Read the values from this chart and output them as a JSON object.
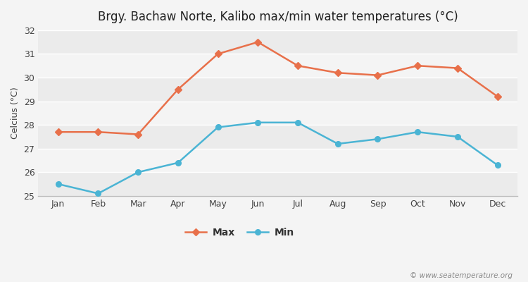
{
  "title": "Brgy. Bachaw Norte, Kalibo max/min water temperatures (°C)",
  "ylabel": "Celcius (°C)",
  "months": [
    "Jan",
    "Feb",
    "Mar",
    "Apr",
    "May",
    "Jun",
    "Jul",
    "Aug",
    "Sep",
    "Oct",
    "Nov",
    "Dec"
  ],
  "max_temps": [
    27.7,
    27.7,
    27.6,
    29.5,
    31.0,
    31.5,
    30.5,
    30.2,
    30.1,
    30.5,
    30.4,
    29.2
  ],
  "min_temps": [
    25.5,
    25.1,
    26.0,
    26.4,
    27.9,
    28.1,
    28.1,
    27.2,
    27.4,
    27.7,
    27.5,
    26.3
  ],
  "max_color": "#e8704a",
  "min_color": "#4ab4d4",
  "ylim": [
    25.0,
    32.0
  ],
  "yticks": [
    25,
    26,
    27,
    28,
    29,
    30,
    31,
    32
  ],
  "fig_bg_color": "#f4f4f4",
  "plot_bg_color": "#f4f4f4",
  "grid_color": "#ffffff",
  "legend_labels": [
    "Max",
    "Min"
  ],
  "watermark": "© www.seatemperature.org",
  "title_fontsize": 12,
  "axis_label_fontsize": 9,
  "tick_fontsize": 9,
  "stripe_colors": [
    "#ebebeb",
    "#f4f4f4"
  ]
}
